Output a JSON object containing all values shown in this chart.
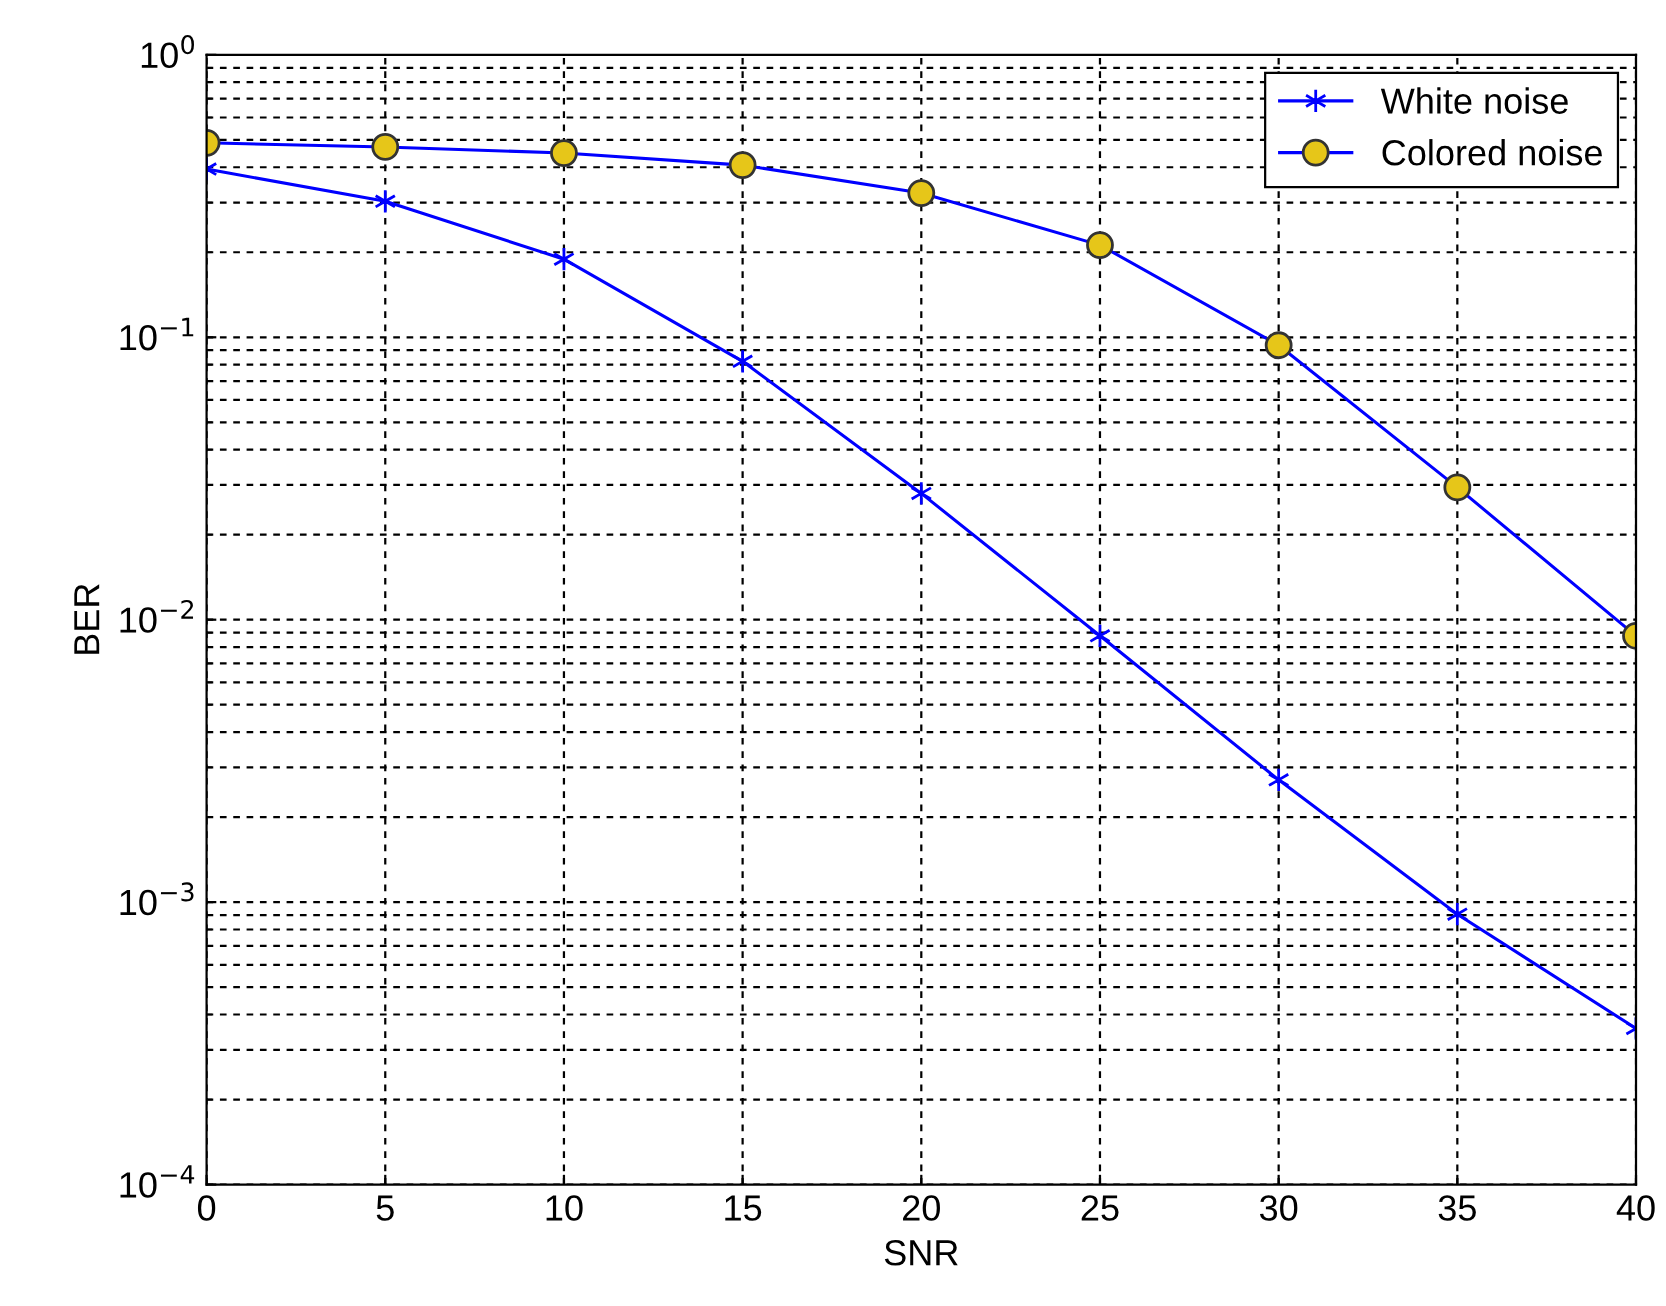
{
  "chart_data": {
    "type": "line",
    "xlabel": "SNR",
    "ylabel": "BER",
    "log": "y",
    "x": [
      0,
      5,
      10,
      15,
      20,
      25,
      30,
      35,
      40
    ],
    "xlim": [
      0,
      40
    ],
    "xticks": [
      0,
      5,
      10,
      15,
      20,
      25,
      30,
      35,
      40
    ],
    "ylim": [
      0.0001,
      1
    ],
    "yticks": [
      {
        "value": 0.0001,
        "label": "10$^{−4}$"
      },
      {
        "value": 0.001,
        "label": "10$^{−3}$"
      },
      {
        "value": 0.01,
        "label": "10$^{−2}$"
      },
      {
        "value": 0.1,
        "label": "10$^{−1}$"
      },
      {
        "value": 1,
        "label": "10$^{0}$"
      }
    ],
    "grid": true,
    "legend": "top right",
    "line_style": "solid",
    "series": [
      {
        "name": "White noise",
        "color": "#0000ff",
        "marker": "cross",
        "values": [
          0.394,
          0.303,
          0.189,
          0.0822,
          0.028,
          0.00877,
          0.00271,
          0.000906,
          0.000357
        ]
      },
      {
        "name": "Colored noise",
        "color": "#0000ff",
        "marker": "circle",
        "colors": [
          "#e6c619",
          "#e6c619",
          "#e6c619",
          "#e6c619",
          "#e6c619",
          "#e6c619",
          "#e6c619",
          "#e6c619",
          "#e6c619"
        ],
        "values": [
          0.488,
          0.472,
          0.449,
          0.407,
          0.324,
          0.212,
          0.0937,
          0.0294,
          0.00877
        ]
      }
    ]
  }
}
